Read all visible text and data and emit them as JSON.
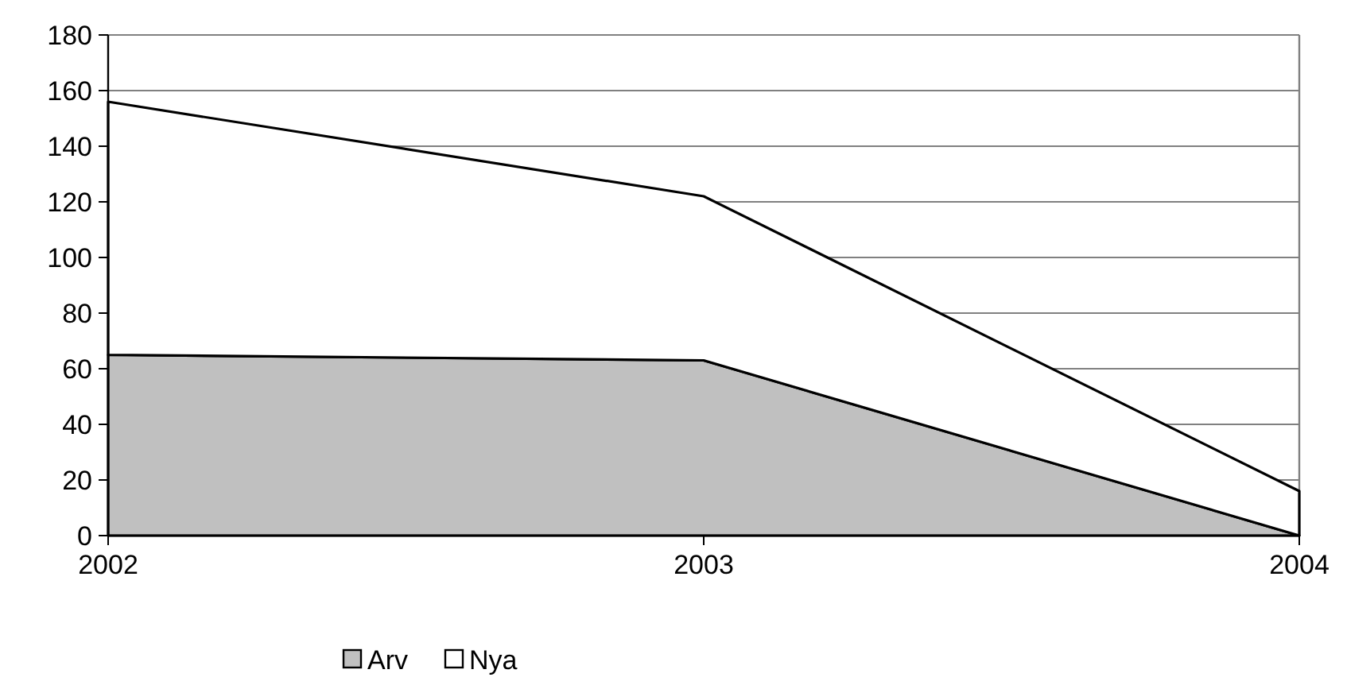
{
  "chart_data": {
    "type": "area",
    "stacked": true,
    "categories": [
      "2002",
      "2003",
      "2004"
    ],
    "series": [
      {
        "name": "Arv",
        "color": "#c0c0c0",
        "values": [
          65,
          63,
          0
        ]
      },
      {
        "name": "Nya",
        "color": "#ffffff",
        "values": [
          91,
          59,
          16
        ]
      }
    ],
    "ylim": [
      0,
      180
    ],
    "yticks": [
      0,
      20,
      40,
      60,
      80,
      100,
      120,
      140,
      160,
      180
    ],
    "grid": "y",
    "legend": "bottom left"
  }
}
